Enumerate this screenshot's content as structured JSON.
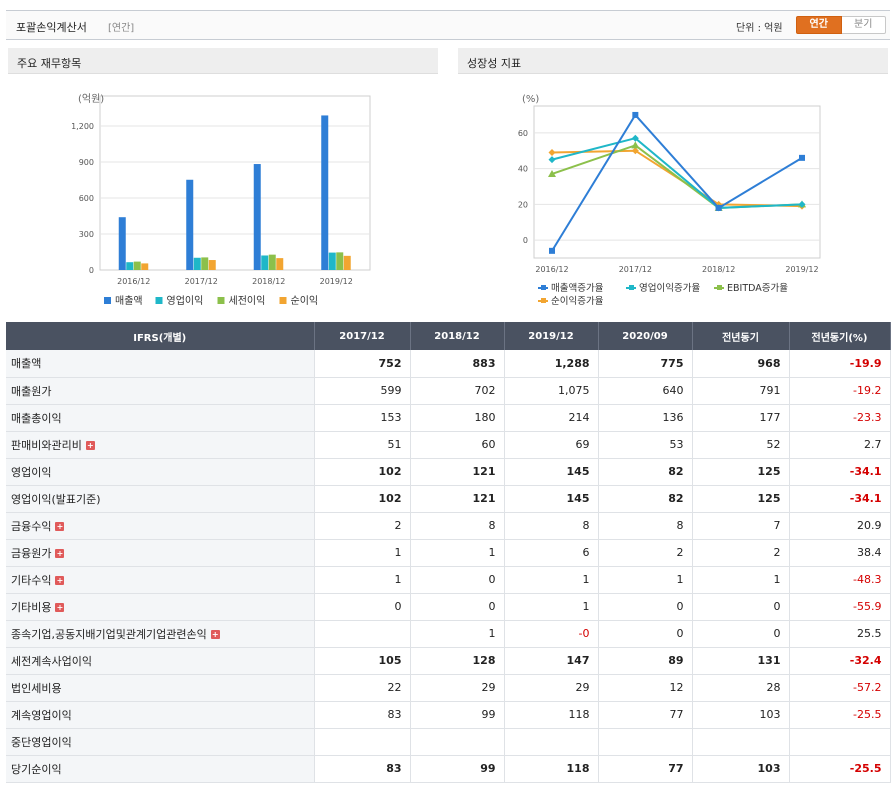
{
  "header": {
    "title": "포괄손익계산서",
    "subtitle": "[연간]",
    "unit_label": "단위 : 억원",
    "toggle_annual": "연간",
    "toggle_quarter": "분기"
  },
  "panels": {
    "left_title": "주요 재무항목",
    "right_title": "성장성 지표"
  },
  "colors": {
    "sales": "#2e7ed6",
    "op": "#1fb7c8",
    "pretax": "#8cc04b",
    "net": "#f2a531",
    "header_bg": "#4a5261",
    "negative": "#d40000",
    "accent": "#e07020"
  },
  "chart_data": [
    {
      "type": "bar",
      "unit_label": "(억원)",
      "categories": [
        "2016/12",
        "2017/12",
        "2018/12",
        "2019/12"
      ],
      "ylim": [
        0,
        1450
      ],
      "yticks": [
        0,
        300,
        600,
        900,
        1200
      ],
      "ytick_labels": [
        "0",
        "300",
        "600",
        "900",
        "1,200"
      ],
      "grid": true,
      "legend_position": "bottom",
      "series": [
        {
          "name": "매출액",
          "values": [
            440,
            752,
            883,
            1288
          ]
        },
        {
          "name": "영업이익",
          "values": [
            65,
            102,
            121,
            145
          ]
        },
        {
          "name": "세전이익",
          "values": [
            70,
            105,
            128,
            147
          ]
        },
        {
          "name": "순이익",
          "values": [
            55,
            83,
            99,
            118
          ]
        }
      ]
    },
    {
      "type": "line",
      "unit_label": "(%)",
      "categories": [
        "2016/12",
        "2017/12",
        "2018/12",
        "2019/12"
      ],
      "ylim": [
        -10,
        75
      ],
      "yticks": [
        0,
        20,
        40,
        60
      ],
      "ytick_labels": [
        "0",
        "20",
        "40",
        "60"
      ],
      "grid": true,
      "legend_position": "bottom",
      "series": [
        {
          "name": "매출액증가율",
          "values": [
            -6,
            70,
            18,
            46
          ]
        },
        {
          "name": "영업이익증가율",
          "values": [
            45,
            57,
            18,
            20
          ]
        },
        {
          "name": "EBITDA증가율",
          "values": [
            37,
            53,
            18,
            20
          ]
        },
        {
          "name": "순이익증가율",
          "values": [
            49,
            50,
            20,
            19
          ]
        }
      ]
    }
  ],
  "table": {
    "headers": [
      "IFRS(개별)",
      "2017/12",
      "2018/12",
      "2019/12",
      "2020/09",
      "전년동기",
      "전년동기(%)"
    ],
    "rows": [
      {
        "label": "매출액",
        "values": [
          "752",
          "883",
          "1,288",
          "775",
          "968",
          "-19.9"
        ],
        "bold": true,
        "expand": false,
        "neg": [
          5
        ]
      },
      {
        "label": "매출원가",
        "values": [
          "599",
          "702",
          "1,075",
          "640",
          "791",
          "-19.2"
        ],
        "bold": false,
        "expand": false,
        "neg": [
          5
        ]
      },
      {
        "label": "매출총이익",
        "values": [
          "153",
          "180",
          "214",
          "136",
          "177",
          "-23.3"
        ],
        "bold": false,
        "expand": false,
        "neg": [
          5
        ]
      },
      {
        "label": "판매비와관리비",
        "values": [
          "51",
          "60",
          "69",
          "53",
          "52",
          "2.7"
        ],
        "bold": false,
        "expand": true,
        "neg": []
      },
      {
        "label": "영업이익",
        "values": [
          "102",
          "121",
          "145",
          "82",
          "125",
          "-34.1"
        ],
        "bold": true,
        "expand": false,
        "neg": [
          5
        ]
      },
      {
        "label": "영업이익(발표기준)",
        "values": [
          "102",
          "121",
          "145",
          "82",
          "125",
          "-34.1"
        ],
        "bold": true,
        "expand": false,
        "neg": [
          5
        ]
      },
      {
        "label": "금융수익",
        "values": [
          "2",
          "8",
          "8",
          "8",
          "7",
          "20.9"
        ],
        "bold": false,
        "expand": true,
        "neg": []
      },
      {
        "label": "금융원가",
        "values": [
          "1",
          "1",
          "6",
          "2",
          "2",
          "38.4"
        ],
        "bold": false,
        "expand": true,
        "neg": []
      },
      {
        "label": "기타수익",
        "values": [
          "1",
          "0",
          "1",
          "1",
          "1",
          "-48.3"
        ],
        "bold": false,
        "expand": true,
        "neg": [
          5
        ]
      },
      {
        "label": "기타비용",
        "values": [
          "0",
          "0",
          "1",
          "0",
          "0",
          "-55.9"
        ],
        "bold": false,
        "expand": true,
        "neg": [
          5
        ]
      },
      {
        "label": "종속기업,공동지배기업및관계기업관련손익",
        "values": [
          "",
          "1",
          "-0",
          "0",
          "0",
          "25.5"
        ],
        "bold": false,
        "expand": true,
        "neg": [
          2
        ]
      },
      {
        "label": "세전계속사업이익",
        "values": [
          "105",
          "128",
          "147",
          "89",
          "131",
          "-32.4"
        ],
        "bold": true,
        "expand": false,
        "neg": [
          5
        ]
      },
      {
        "label": "법인세비용",
        "values": [
          "22",
          "29",
          "29",
          "12",
          "28",
          "-57.2"
        ],
        "bold": false,
        "expand": false,
        "neg": [
          5
        ]
      },
      {
        "label": "계속영업이익",
        "values": [
          "83",
          "99",
          "118",
          "77",
          "103",
          "-25.5"
        ],
        "bold": false,
        "expand": false,
        "neg": [
          5
        ]
      },
      {
        "label": "중단영업이익",
        "values": [
          "",
          "",
          "",
          "",
          "",
          ""
        ],
        "bold": false,
        "expand": false,
        "neg": []
      },
      {
        "label": "당기순이익",
        "values": [
          "83",
          "99",
          "118",
          "77",
          "103",
          "-25.5"
        ],
        "bold": true,
        "expand": false,
        "neg": [
          5
        ]
      }
    ]
  }
}
